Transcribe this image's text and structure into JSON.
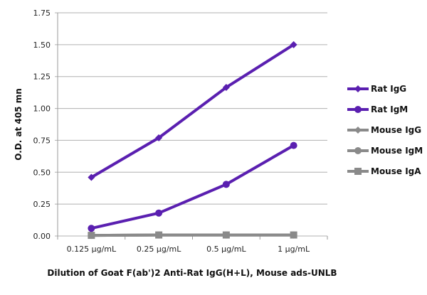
{
  "chart_data": {
    "type": "line",
    "title": "",
    "xlabel": "Dilution of Goat F(ab')2 Anti-Rat IgG(H+L), Mouse ads-UNLB",
    "ylabel": "O.D. at 405 mn",
    "categories": [
      "0.125 µg/mL",
      "0.25 µg/mL",
      "0.5 µg/mL",
      "1 µg/mL"
    ],
    "ylim": [
      0,
      1.75
    ],
    "yticks": [
      "0.00",
      "0.25",
      "0.50",
      "0.75",
      "1.00",
      "1.25",
      "1.50",
      "1.75"
    ],
    "grid": true,
    "legend_position": "right",
    "series": [
      {
        "name": "Rat IgG",
        "values": [
          0.46,
          0.77,
          1.165,
          1.5
        ],
        "color": "#5a1fb0",
        "marker": "diamond"
      },
      {
        "name": "Rat IgM",
        "values": [
          0.06,
          0.18,
          0.405,
          0.71
        ],
        "color": "#5a1fb0",
        "marker": "circle"
      },
      {
        "name": "Mouse IgG",
        "values": [
          0.005,
          0.008,
          0.008,
          0.008
        ],
        "color": "#8a8a8a",
        "marker": "diamond"
      },
      {
        "name": "Mouse IgM",
        "values": [
          0.005,
          0.008,
          0.008,
          0.008
        ],
        "color": "#8a8a8a",
        "marker": "circle"
      },
      {
        "name": "Mouse IgA",
        "values": [
          0.005,
          0.008,
          0.008,
          0.008
        ],
        "color": "#8a8a8a",
        "marker": "square"
      }
    ]
  }
}
